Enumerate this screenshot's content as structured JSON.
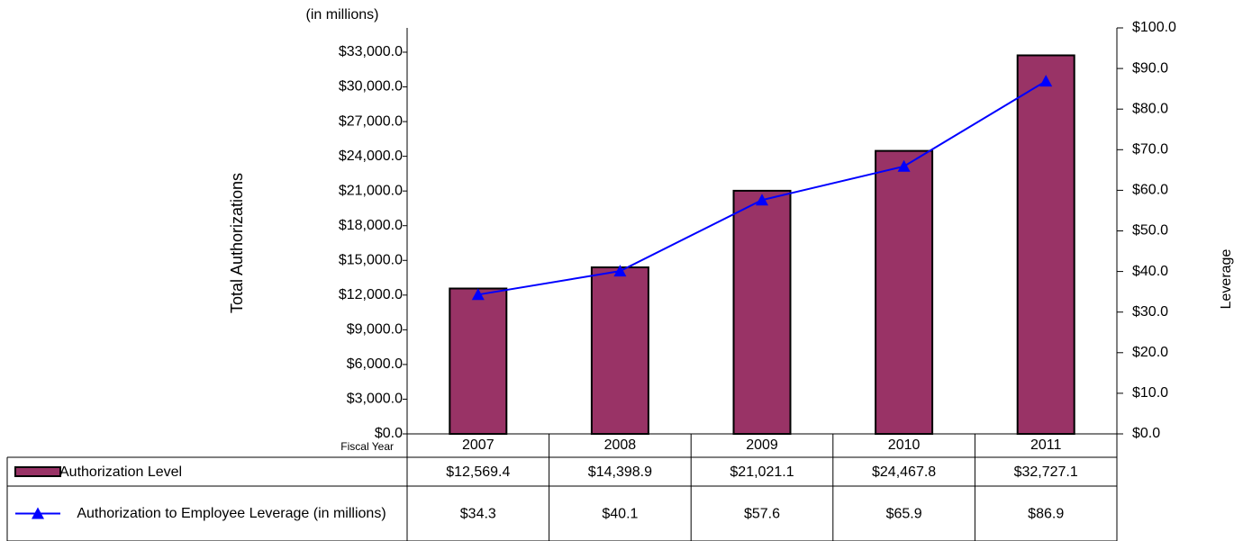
{
  "chart_data": {
    "type": "bar-line",
    "unit_note": "(in millions)",
    "y_label": "Total Authorizations",
    "y2_label": "Leverage",
    "x_label": "Fiscal Year",
    "categories": [
      "2007",
      "2008",
      "2009",
      "2010",
      "2011"
    ],
    "series": [
      {
        "name": "Authorization Level",
        "type": "bar",
        "color": "#993366",
        "values": [
          12569.4,
          14398.9,
          21021.1,
          24467.8,
          32727.1
        ],
        "value_labels": [
          "$12,569.4",
          "$14,398.9",
          "$21,021.1",
          "$24,467.8",
          "$32,727.1"
        ]
      },
      {
        "name": "Authorization to Employee Leverage (in millions)",
        "type": "line",
        "color": "#0000ff",
        "axis": "y2",
        "values": [
          34.3,
          40.1,
          57.6,
          65.9,
          86.9
        ],
        "value_labels": [
          "$34.3",
          "$40.1",
          "$57.6",
          "$65.9",
          "$86.9"
        ]
      }
    ],
    "ylim": [
      0,
      35100
    ],
    "yticks": [
      {
        "value": 0,
        "label": "$0.0"
      },
      {
        "value": 3000,
        "label": "$3,000.0"
      },
      {
        "value": 6000,
        "label": "$6,000.0"
      },
      {
        "value": 9000,
        "label": "$9,000.0"
      },
      {
        "value": 12000,
        "label": "$12,000.0"
      },
      {
        "value": 15000,
        "label": "$15,000.0"
      },
      {
        "value": 18000,
        "label": "$18,000.0"
      },
      {
        "value": 21000,
        "label": "$21,000.0"
      },
      {
        "value": 24000,
        "label": "$24,000.0"
      },
      {
        "value": 27000,
        "label": "$27,000.0"
      },
      {
        "value": 30000,
        "label": "$30,000.0"
      },
      {
        "value": 33000,
        "label": "$33,000.0"
      }
    ],
    "y2lim": [
      0,
      100
    ],
    "y2ticks": [
      {
        "value": 0,
        "label": "$0.0"
      },
      {
        "value": 10,
        "label": "$10.0"
      },
      {
        "value": 20,
        "label": "$20.0"
      },
      {
        "value": 30,
        "label": "$30.0"
      },
      {
        "value": 40,
        "label": "$40.0"
      },
      {
        "value": 50,
        "label": "$50.0"
      },
      {
        "value": 60,
        "label": "$60.0"
      },
      {
        "value": 70,
        "label": "$70.0"
      },
      {
        "value": 80,
        "label": "$80.0"
      },
      {
        "value": 90,
        "label": "$90.0"
      },
      {
        "value": 100,
        "label": "$100.0"
      }
    ]
  }
}
